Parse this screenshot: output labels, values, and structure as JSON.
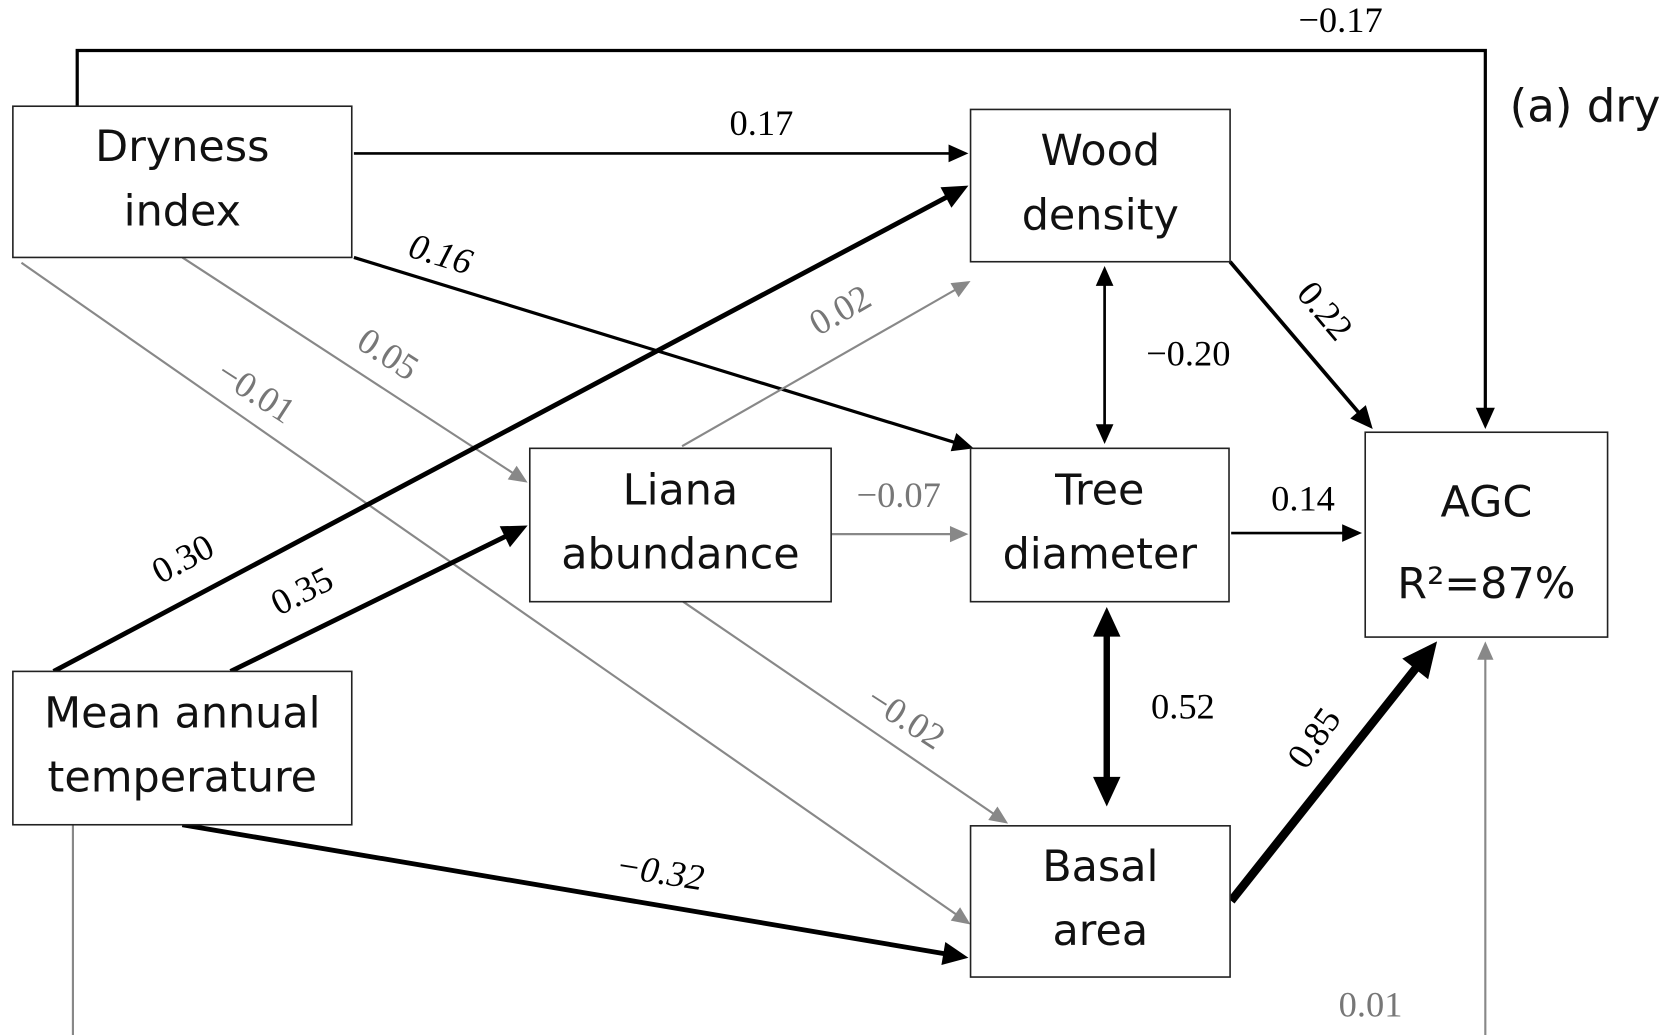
{
  "panel_label": "(a) dry",
  "nodes": [
    {
      "lines": [
        "Dryness",
        "index"
      ]
    },
    {
      "lines": [
        "Wood",
        "density"
      ]
    },
    {
      "lines": [
        "Liana",
        "abundance"
      ]
    },
    {
      "lines": [
        "Tree",
        "diameter"
      ]
    },
    {
      "lines": [
        "AGC",
        "R²=87%"
      ]
    },
    {
      "lines": [
        "Mean annual",
        "temperature"
      ]
    },
    {
      "lines": [
        "Basal",
        "area"
      ]
    }
  ],
  "edges": [
    {
      "label": "−0.17"
    },
    {
      "label": "0.17"
    },
    {
      "label": "0.16"
    },
    {
      "label": "0.05"
    },
    {
      "label": "−0.01"
    },
    {
      "label": "0.30"
    },
    {
      "label": "0.35"
    },
    {
      "label": "−0.32"
    },
    {
      "label": "0.01"
    },
    {
      "label": "0.02"
    },
    {
      "label": "−0.07"
    },
    {
      "label": "−0.02"
    },
    {
      "label": "0.22"
    },
    {
      "label": "−0.20"
    },
    {
      "label": "0.14"
    },
    {
      "label": "0.52"
    },
    {
      "label": "0.85"
    }
  ]
}
